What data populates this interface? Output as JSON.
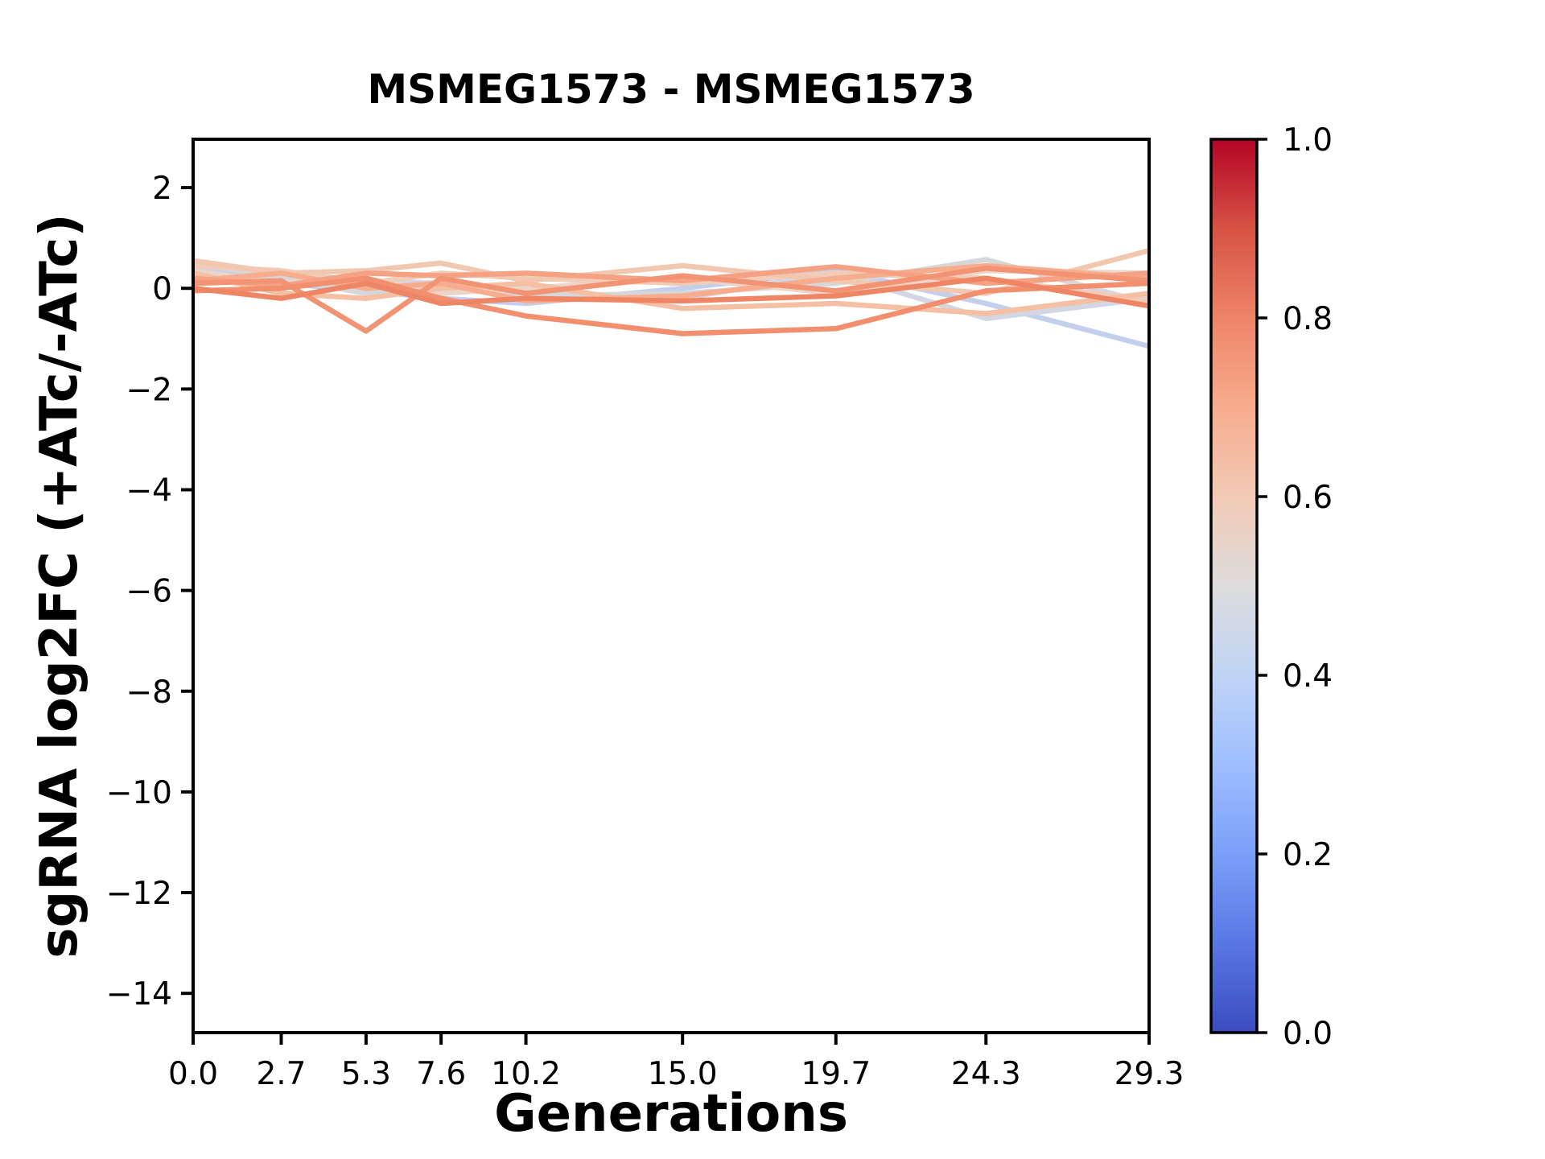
{
  "figure": {
    "title": "MSMEG1573 - MSMEG1573",
    "xlabel": "Generations",
    "ylabel": "sgRNA log2FC (+ATc/-ATc)",
    "background": "#ffffff"
  },
  "chart_data": {
    "type": "line",
    "title": "MSMEG1573 - MSMEG1573",
    "xlabel": "Generations",
    "ylabel": "sgRNA log2FC (+ATc/-ATc)",
    "x": [
      0.0,
      2.7,
      5.3,
      7.6,
      10.2,
      15.0,
      19.7,
      24.3,
      29.3
    ],
    "x_tick_labels": [
      "0.0",
      "2.7",
      "5.3",
      "7.6",
      "10.2",
      "15.0",
      "19.7",
      "24.3",
      "29.3"
    ],
    "xlim": [
      0,
      29.3
    ],
    "ylim": [
      -14.78,
      2.96
    ],
    "y_ticks": [
      2,
      0,
      -2,
      -4,
      -6,
      -8,
      -10,
      -12,
      -14
    ],
    "y_tick_labels": [
      "2",
      "0",
      "−2",
      "−4",
      "−6",
      "−8",
      "−10",
      "−12",
      "−14"
    ],
    "grid": false,
    "legend": "none",
    "line_color_scale": "coolwarm (0.0 blue → 1.0 red)",
    "series": [
      {
        "id": "sgRNA-01",
        "color_value": 0.44,
        "color": "#c3cfed",
        "values": [
          0.4,
          0.1,
          -0.05,
          -0.2,
          -0.3,
          0.0,
          0.35,
          -0.3,
          -1.15
        ]
      },
      {
        "id": "sgRNA-02",
        "color_value": 0.48,
        "color": "#d2d7e3",
        "values": [
          0.45,
          0.3,
          0.15,
          0.1,
          -0.1,
          -0.2,
          0.3,
          -0.6,
          -0.2
        ]
      },
      {
        "id": "sgRNA-03",
        "color_value": 0.51,
        "color": "#d6d7da",
        "values": [
          0.5,
          0.2,
          -0.1,
          0.05,
          -0.15,
          -0.1,
          0.1,
          0.57,
          -0.3
        ]
      },
      {
        "id": "sgRNA-04",
        "color_value": 0.57,
        "color": "#ecd5c8",
        "values": [
          0.35,
          0.1,
          0.2,
          -0.1,
          0.0,
          0.2,
          -0.1,
          0.35,
          0.3
        ]
      },
      {
        "id": "sgRNA-05",
        "color_value": 0.6,
        "color": "#f1ccb8",
        "values": [
          0.45,
          0.35,
          0.1,
          0.3,
          0.2,
          0.1,
          0.3,
          0.2,
          -0.25
        ]
      },
      {
        "id": "sgRNA-06",
        "color_value": 0.62,
        "color": "#f2c7b0",
        "values": [
          0.55,
          0.3,
          0.35,
          0.5,
          0.15,
          0.45,
          0.15,
          -0.1,
          0.75
        ]
      },
      {
        "id": "sgRNA-07",
        "color_value": 0.65,
        "color": "#f5bfa4",
        "values": [
          0.3,
          -0.1,
          -0.2,
          0.0,
          0.1,
          -0.4,
          -0.3,
          -0.5,
          -0.1
        ]
      },
      {
        "id": "sgRNA-08",
        "color_value": 0.7,
        "color": "#f7ad8d",
        "values": [
          0.15,
          0.3,
          0.0,
          0.1,
          -0.25,
          -0.15,
          0.2,
          0.45,
          0.2
        ]
      },
      {
        "id": "sgRNA-09",
        "color_value": 0.72,
        "color": "#f5a183",
        "values": [
          0.2,
          0.05,
          0.3,
          0.25,
          0.3,
          0.15,
          0.43,
          0.1,
          0.3
        ]
      },
      {
        "id": "sgRNA-10",
        "color_value": 0.75,
        "color": "#f29374",
        "values": [
          0.1,
          0.15,
          -0.85,
          0.2,
          -0.1,
          0.25,
          -0.05,
          0.4,
          0.15
        ]
      },
      {
        "id": "sgRNA-11",
        "color_value": 0.76,
        "color": "#f18f6f",
        "values": [
          -0.05,
          0.0,
          0.2,
          -0.2,
          -0.55,
          -0.9,
          -0.8,
          -0.05,
          0.1
        ]
      },
      {
        "id": "sgRNA-12",
        "color_value": 0.78,
        "color": "#ee8666",
        "values": [
          0.0,
          -0.2,
          0.1,
          -0.3,
          -0.2,
          -0.25,
          -0.15,
          0.2,
          -0.35
        ]
      }
    ],
    "colorbar": {
      "orientation": "vertical",
      "range": [
        0.0,
        1.0
      ],
      "ticks": [
        "0.0",
        "0.2",
        "0.4",
        "0.6",
        "0.8",
        "1.0"
      ],
      "colormap": "coolwarm",
      "gradient": [
        [
          0.0,
          "#3b4cc0"
        ],
        [
          0.1,
          "#5977e3"
        ],
        [
          0.2,
          "#7b9ff9"
        ],
        [
          0.3,
          "#9ebeff"
        ],
        [
          0.4,
          "#c0d4f5"
        ],
        [
          0.5,
          "#dddcdc"
        ],
        [
          0.6,
          "#f2cab5"
        ],
        [
          0.7,
          "#f7ac8e"
        ],
        [
          0.8,
          "#ee8468"
        ],
        [
          0.9,
          "#d65244"
        ],
        [
          1.0,
          "#b40426"
        ]
      ]
    }
  }
}
